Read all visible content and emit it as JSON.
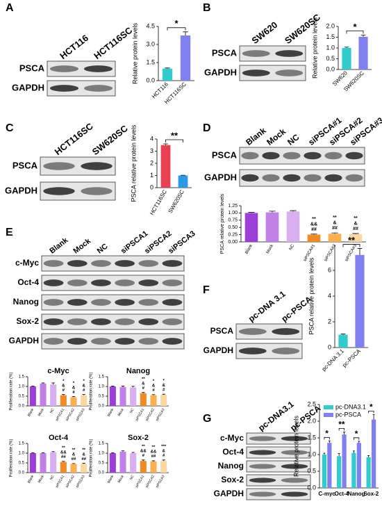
{
  "panels": [
    {
      "letter": "A",
      "lanes": [
        "HCT116",
        "HCT116SC"
      ],
      "rows": [
        "PSCA",
        "GAPDH"
      ]
    },
    {
      "letter": "B",
      "lanes": [
        "SW620",
        "SW620SC"
      ],
      "rows": [
        "PSCA",
        "GAPDH"
      ]
    },
    {
      "letter": "C",
      "lanes": [
        "HCT116SC",
        "SW620SC"
      ],
      "rows": [
        "PSCA",
        "GAPDH"
      ]
    },
    {
      "letter": "D",
      "lanes": [
        "Blank",
        "Mock",
        "NC",
        "siPSCA#1",
        "siPSCA#2",
        "siPSCA#3"
      ],
      "rows": [
        "PSCA",
        "GAPDH"
      ]
    },
    {
      "letter": "E",
      "lanes": [
        "Blank",
        "Mock",
        "NC",
        "siPSCA1",
        "siPSCA2",
        "siPSCA3"
      ],
      "rows": [
        "c-Myc",
        "Oct-4",
        "Nanog",
        "Sox-2",
        "GAPDH"
      ]
    },
    {
      "letter": "F",
      "lanes": [
        "pc-DNA 3.1",
        "pc-PSCA"
      ],
      "rows": [
        "PSCA",
        "GAPDH"
      ]
    },
    {
      "letter": "G",
      "lanes": [
        "pc-DNA3.1",
        "pc-PSCA"
      ],
      "rows": [
        "c-Myc",
        "Oct-4",
        "Nanog",
        "Sox-2",
        "GAPDH"
      ]
    }
  ],
  "chart_data": [
    {
      "type": "bar",
      "y_label": "Relative protein levels",
      "categories": [
        "HCT116",
        "HCT116SC"
      ],
      "values": [
        1.0,
        3.75
      ],
      "errors": [
        0.05,
        0.3
      ],
      "colors": [
        "#33cccc",
        "#8080f0"
      ],
      "ylim": [
        0,
        4.5
      ],
      "yticks": [
        {
          "value": 0,
          "label": "0.0"
        },
        1.5,
        {
          "value": 3,
          "label": "3.0"
        },
        4.5
      ],
      "significance": "*"
    },
    {
      "type": "bar",
      "y_label": "Relative protein levels",
      "categories": [
        "SW620",
        "SW620SC"
      ],
      "values": [
        1.0,
        1.52
      ],
      "errors": [
        0.04,
        0.08
      ],
      "colors": [
        "#33cccc",
        "#8080f0"
      ],
      "ylim": [
        0,
        2
      ],
      "yticks": [
        {
          "value": 0,
          "label": "0.0"
        },
        0.5,
        {
          "value": 1,
          "label": "1.0"
        },
        1.5,
        {
          "value": 2,
          "label": "2.0"
        }
      ],
      "significance": "*"
    },
    {
      "type": "bar",
      "y_label": "PSCA relative protein levels",
      "categories": [
        "HCT116SC",
        "SW620SC"
      ],
      "values": [
        3.5,
        1.0
      ],
      "errors": [
        0.1,
        0.02
      ],
      "colors": [
        "#e84050",
        "#2b9be8"
      ],
      "ylim": [
        0,
        4
      ],
      "yticks": [
        0,
        1,
        2,
        3,
        4
      ],
      "significance": "**"
    },
    {
      "type": "bar",
      "y_label": "PSCA relative protein levels",
      "categories": [
        "Blank",
        "Mock",
        "NC",
        "siPSCA#1",
        "siPSCA#2",
        "siPSCA#3"
      ],
      "values": [
        1.0,
        1.02,
        1.05,
        0.25,
        0.28,
        0.27
      ],
      "errors": [
        0.02,
        0.04,
        0.03,
        0.02,
        0.03,
        0.02
      ],
      "colors": [
        "#9b3fd6",
        "#c080e8",
        "#d8b0f0",
        "#f08a24",
        "#f8b050",
        "#f8d8a0"
      ],
      "ylim": [
        0,
        1.25
      ],
      "yticks": [
        {
          "value": 0,
          "label": "0.00"
        },
        0.25,
        {
          "value": 0.5,
          "label": "0.50"
        },
        0.75,
        {
          "value": 1,
          "label": "1.00"
        },
        1.25
      ],
      "annotations": [
        null,
        null,
        null,
        [
          "**",
          "&&",
          "##"
        ],
        [
          "**",
          "&",
          "##"
        ],
        [
          "**",
          "&",
          "##"
        ]
      ]
    },
    {
      "type": "bar",
      "title": "c-Myc",
      "y_label": "Proliferation rate (%)",
      "categories": [
        "Blank",
        "Mock",
        "NC",
        "siPSCA1",
        "siPSCA2",
        "siPSCA3"
      ],
      "values": [
        1.0,
        1.15,
        1.1,
        0.55,
        0.45,
        0.55
      ],
      "errors": [
        0.02,
        0.03,
        0.08,
        0.04,
        0.03,
        0.04
      ],
      "colors": [
        "#9b3fd6",
        "#c080e8",
        "#d8b0f0",
        "#f08a24",
        "#f8b050",
        "#f8d8a0"
      ],
      "ylim": [
        0,
        1.5
      ],
      "yticks": [
        {
          "value": 0,
          "label": "0.0"
        },
        0.5,
        {
          "value": 1,
          "label": "1.0"
        },
        1.5
      ],
      "annotations": [
        null,
        null,
        null,
        [
          "*",
          "&",
          "#"
        ],
        [
          "*",
          "&",
          "#"
        ],
        [
          "*",
          "&",
          "#"
        ]
      ]
    },
    {
      "type": "bar",
      "title": "Nanog",
      "y_label": "Proliferation rate (%)",
      "categories": [
        "Blank",
        "Mock",
        "NC",
        "siPSCA1",
        "siPSCA2",
        "siPSCA3"
      ],
      "values": [
        1.0,
        0.97,
        0.95,
        0.65,
        0.55,
        0.57
      ],
      "errors": [
        0.02,
        0.05,
        0.06,
        0.04,
        0.03,
        0.03
      ],
      "colors": [
        "#9b3fd6",
        "#c080e8",
        "#d8b0f0",
        "#f08a24",
        "#f8b050",
        "#f8d8a0"
      ],
      "ylim": [
        0,
        1.5
      ],
      "yticks": [
        {
          "value": 0,
          "label": "0.0"
        },
        0.5,
        {
          "value": 1,
          "label": "1.0"
        },
        1.5
      ],
      "annotations": [
        null,
        null,
        null,
        [
          "**",
          "&",
          "#"
        ],
        [
          "*",
          "&",
          "#"
        ],
        [
          "*",
          "&",
          "#"
        ]
      ]
    },
    {
      "type": "bar",
      "title": "Oct-4",
      "y_label": "Proliferation rate (%)",
      "categories": [
        "Blank",
        "Mock",
        "NC",
        "siPSCA1",
        "siPSCA2",
        "siPSCA3"
      ],
      "values": [
        1.0,
        1.0,
        1.05,
        0.55,
        0.45,
        0.45
      ],
      "errors": [
        0.02,
        0.02,
        0.03,
        0.03,
        0.02,
        0.03
      ],
      "colors": [
        "#9b3fd6",
        "#c080e8",
        "#d8b0f0",
        "#f08a24",
        "#f8b050",
        "#f8d8a0"
      ],
      "ylim": [
        0,
        1.5
      ],
      "yticks": [
        {
          "value": 0,
          "label": "0.0"
        },
        0.5,
        {
          "value": 1,
          "label": "1.0"
        },
        1.5
      ],
      "annotations": [
        null,
        null,
        null,
        [
          "**",
          "&&",
          "##"
        ],
        [
          "**",
          "&",
          "##"
        ],
        [
          "**",
          "&",
          "##"
        ]
      ]
    },
    {
      "type": "bar",
      "title": "Sox-2",
      "y_label": "Proliferation rate (%)",
      "categories": [
        "Blank",
        "Mock",
        "NC",
        "siPSCA1",
        "siPSCA2",
        "siPSCA3"
      ],
      "values": [
        1.0,
        1.08,
        1.0,
        0.6,
        0.57,
        0.6
      ],
      "errors": [
        0.02,
        0.04,
        0.04,
        0.05,
        0.04,
        0.05
      ],
      "colors": [
        "#9b3fd6",
        "#c080e8",
        "#d8b0f0",
        "#f08a24",
        "#f8b050",
        "#f8d8a0"
      ],
      "ylim": [
        0,
        1.5
      ],
      "yticks": [
        {
          "value": 0,
          "label": "0.0"
        },
        0.5,
        {
          "value": 1,
          "label": "1.0"
        },
        1.5
      ],
      "annotations": [
        null,
        null,
        null,
        [
          "**",
          "&&",
          "#"
        ],
        [
          "**",
          "&&",
          "##"
        ],
        [
          "***",
          "&",
          "#"
        ]
      ]
    },
    {
      "type": "bar",
      "y_label": "PSCA relative protein levels",
      "categories": [
        "pc-DNA 3.1",
        "pc-PSCA"
      ],
      "values": [
        1.0,
        7.2
      ],
      "errors": [
        0.05,
        0.5
      ],
      "colors": [
        "#33cccc",
        "#8080f0"
      ],
      "ylim": [
        0,
        8
      ],
      "yticks": [
        0,
        2,
        4,
        6
      ],
      "significance": "**"
    },
    {
      "type": "grouped_bar",
      "y_label": "Relative protein levels",
      "categories": [
        "C-myc",
        "Oct-4",
        "Nanog",
        "Sox-2"
      ],
      "series": [
        {
          "name": "pc-DNA3.1",
          "color": "#33cccc",
          "values": [
            1.0,
            0.95,
            1.05,
            0.92
          ],
          "errors": [
            0.04,
            0.08,
            0.06,
            0.05
          ]
        },
        {
          "name": "pc-PSCA",
          "color": "#8080f0",
          "values": [
            1.35,
            1.6,
            1.35,
            2.05
          ],
          "errors": [
            0.06,
            0.08,
            0.05,
            0.15
          ]
        }
      ],
      "ylim": [
        0,
        2.5
      ],
      "yticks": [
        {
          "value": 0,
          "label": "0.0"
        },
        0.5,
        {
          "value": 1,
          "label": "1.0"
        },
        1.5,
        {
          "value": 2,
          "label": "2.0"
        },
        2.5
      ],
      "significance": [
        "*",
        "**",
        "*",
        "*"
      ]
    }
  ]
}
